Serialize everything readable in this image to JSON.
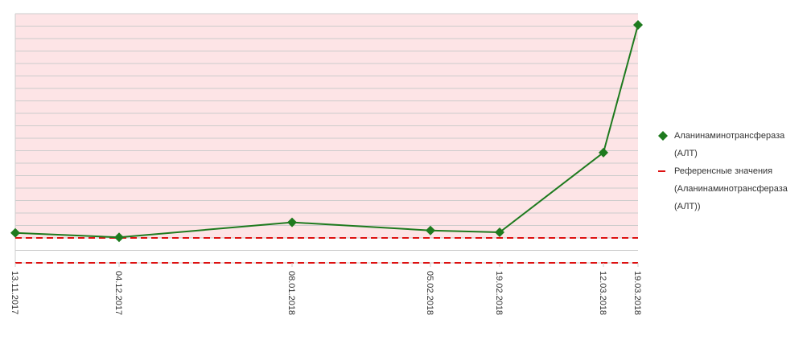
{
  "chart_data": {
    "type": "line",
    "x": [
      "13.11.2017",
      "04.12.2017",
      "08.01.2018",
      "05.02.2018",
      "19.02.2018",
      "12.03.2018",
      "19.03.2018"
    ],
    "xlim": [
      "13.11.2017",
      "19.03.2018"
    ],
    "series": [
      {
        "name": "Аланинаминотрансфераза (АЛТ)",
        "color": "#1e7a1e",
        "values": [
          48,
          41,
          65,
          52,
          49,
          177,
          382
        ]
      }
    ],
    "reference": {
      "name": "Референсные значения (Аланинаминотрансфераза (АЛТ))",
      "color": "#dd1111",
      "values": [
        0,
        40
      ]
    },
    "ylim": [
      0,
      400
    ],
    "ygrid": [
      0,
      20,
      40,
      60,
      80,
      100,
      120,
      140,
      160,
      180,
      200,
      220,
      240,
      260,
      280,
      300,
      320,
      340,
      360,
      380,
      400
    ],
    "grid": true
  }
}
